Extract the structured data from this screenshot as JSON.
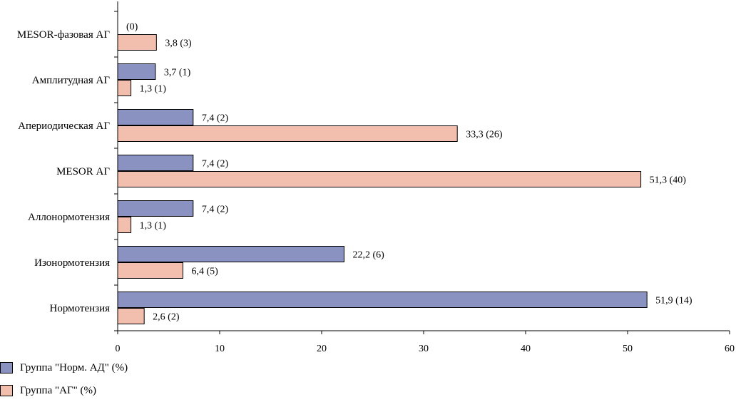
{
  "chart_data": {
    "type": "bar",
    "orientation": "horizontal",
    "categories": [
      "MESOR-фазовая АГ",
      "Амплитудная АГ",
      "Апериодическая АГ",
      "MESOR АГ",
      "Аллонормотензия",
      "Изонормотензия",
      "Нормотензия"
    ],
    "series": [
      {
        "name": "Группа \"Норм. АД\" (%)",
        "color": "#8a92c2",
        "values": [
          0,
          3.7,
          7.4,
          7.4,
          7.4,
          22.2,
          51.9
        ],
        "labels": [
          "(0)",
          "3,7 (1)",
          "7,4 (2)",
          "7,4 (2)",
          "7,4 (2)",
          "22,2 (6)",
          "51,9 (14)"
        ]
      },
      {
        "name": "Группа \"АГ\" (%)",
        "color": "#f2bfae",
        "values": [
          3.8,
          1.3,
          33.3,
          51.3,
          1.3,
          6.4,
          2.6
        ],
        "labels": [
          "3,8 (3)",
          "1,3 (1)",
          "33,3 (26)",
          "51,3 (40)",
          "1,3 (1)",
          "6,4 (5)",
          "2,6 (2)"
        ]
      }
    ],
    "xlim": [
      0,
      60
    ],
    "xticks": [
      "0",
      "10",
      "20",
      "30",
      "40",
      "50",
      "60"
    ],
    "grid": false,
    "legend_position": "bottom-left"
  }
}
